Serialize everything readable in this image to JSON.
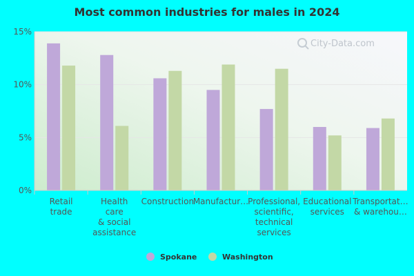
{
  "chart_data": {
    "type": "bar",
    "title": "Most common industries for males in 2024",
    "categories": [
      [
        "Retail",
        "trade"
      ],
      [
        "Health",
        "care",
        "& social",
        "assistance"
      ],
      [
        "Construction"
      ],
      [
        "Manufactur…"
      ],
      [
        "Professional,",
        "scientific,",
        "technical",
        "services"
      ],
      [
        "Educational",
        "services"
      ],
      [
        "Transportat…",
        "& warehou…"
      ]
    ],
    "series": [
      {
        "name": "Spokane",
        "color": "#bfa8d9",
        "values": [
          13.9,
          12.8,
          10.6,
          9.5,
          7.7,
          6.0,
          5.9
        ]
      },
      {
        "name": "Washington",
        "color": "#c3d8a6",
        "values": [
          11.8,
          6.1,
          11.3,
          11.9,
          11.5,
          5.2,
          6.8
        ]
      }
    ],
    "y_ticks": [
      "0%",
      "5%",
      "10%",
      "15%"
    ],
    "ylim": [
      0,
      15
    ],
    "legend_position": "bottom",
    "grid": true,
    "watermark": "City-Data.com"
  }
}
